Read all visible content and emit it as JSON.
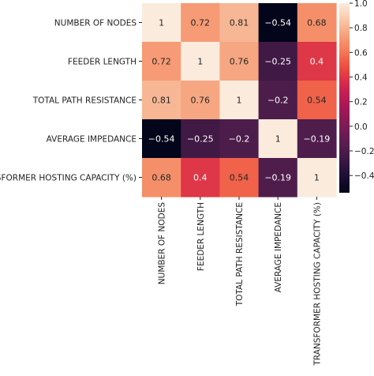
{
  "chart_data": {
    "type": "heatmap",
    "rows": [
      "NUMBER OF NODES",
      "FEEDER LENGTH",
      "TOTAL PATH RESISTANCE",
      "AVERAGE IMPEDANCE",
      "TRANSFORMER HOSTING CAPACITY (%)"
    ],
    "columns": [
      "NUMBER OF NODES",
      "FEEDER LENGTH",
      "TOTAL PATH RESISTANCE",
      "AVERAGE IMPEDANCE",
      "TRANSFORMER HOSTING CAPACITY (%)"
    ],
    "values": [
      [
        1,
        0.72,
        0.81,
        -0.54,
        0.68
      ],
      [
        0.72,
        1,
        0.76,
        -0.25,
        0.4
      ],
      [
        0.81,
        0.76,
        1,
        -0.2,
        0.54
      ],
      [
        -0.54,
        -0.25,
        -0.2,
        1,
        -0.19
      ],
      [
        0.68,
        0.4,
        0.54,
        -0.19,
        1
      ]
    ],
    "colorbar": {
      "range": [
        -0.54,
        1.0
      ],
      "ticks": [
        "1.0",
        "0.8",
        "0.6",
        "0.4",
        "0.2",
        "0.0",
        "−0.2",
        "−0.4"
      ],
      "tick_values": [
        1.0,
        0.8,
        0.6,
        0.4,
        0.2,
        0.0,
        -0.2,
        -0.4
      ],
      "colormap": "rocket"
    },
    "annotated": true,
    "grid": false,
    "title": "",
    "xlabel": "",
    "ylabel": ""
  }
}
